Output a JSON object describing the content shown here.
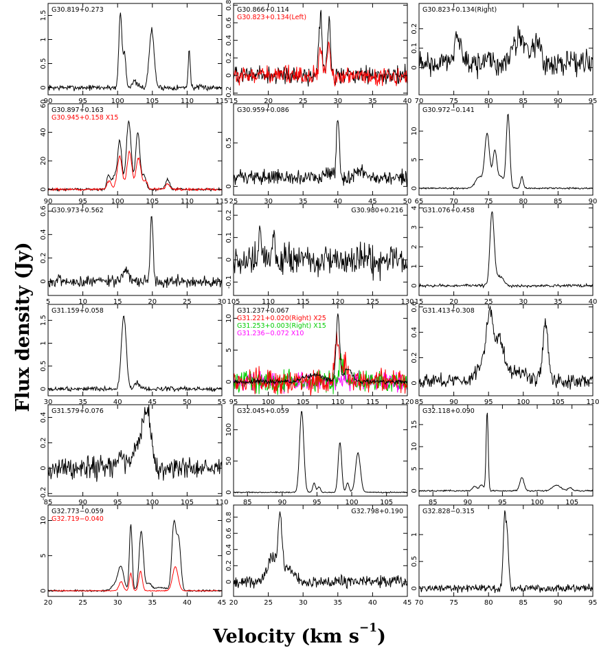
{
  "figure": {
    "ylabel": "Flux density (Jy)",
    "xlabel_main": "Velocity (km s",
    "xlabel_exp": "−1",
    "xlabel_close": ")"
  },
  "chart_data": [
    {
      "type": "line",
      "labels": [
        {
          "text": "G30.819+0.273",
          "color": "#000000",
          "corner": "left"
        }
      ],
      "xlim": [
        90,
        115
      ],
      "ylim": [
        -0.15,
        1.75
      ],
      "xticks": [
        90,
        95,
        100,
        105,
        110,
        115
      ],
      "yticks": [
        0,
        0.5,
        1,
        1.5
      ],
      "series": [
        {
          "color": "#000000",
          "noise": 0.04,
          "base": 0,
          "peaks": [
            [
              100.4,
              1.55,
              0.22
            ],
            [
              101.0,
              0.7,
              0.2
            ],
            [
              102.4,
              0.12,
              0.4
            ],
            [
              104.9,
              1.2,
              0.35
            ],
            [
              110.3,
              0.78,
              0.15
            ]
          ]
        }
      ]
    },
    {
      "type": "line",
      "labels": [
        {
          "text": "G30.866+0.114",
          "color": "#000000",
          "corner": "left"
        },
        {
          "text": "G30.823+0.134(Left)",
          "color": "#ff0000",
          "corner": "left"
        }
      ],
      "xlim": [
        15,
        40
      ],
      "ylim": [
        -0.22,
        0.82
      ],
      "xticks": [
        15,
        20,
        25,
        30,
        35,
        40
      ],
      "yticks": [
        -0.2,
        0,
        0.2,
        0.4,
        0.6,
        0.8
      ],
      "series": [
        {
          "color": "#000000",
          "noise": 0.07,
          "base": 0,
          "peaks": [
            [
              27.5,
              0.72,
              0.22
            ],
            [
              28.7,
              0.66,
              0.22
            ]
          ]
        },
        {
          "color": "#ff0000",
          "noise": 0.07,
          "base": 0,
          "peaks": [
            [
              27.5,
              0.3,
              0.22
            ],
            [
              28.7,
              0.32,
              0.22
            ]
          ]
        }
      ]
    },
    {
      "type": "line",
      "labels": [
        {
          "text": "G30.823+0.134(Right)",
          "color": "#000000",
          "corner": "left"
        }
      ],
      "xlim": [
        70,
        95
      ],
      "ylim": [
        -0.14,
        0.33
      ],
      "xticks": [
        70,
        75,
        80,
        85,
        90,
        95
      ],
      "yticks": [
        0,
        0.1,
        0.2
      ],
      "series": [
        {
          "color": "#000000",
          "noise": 0.045,
          "base": 0.02,
          "peaks": [
            [
              75.6,
              0.15,
              0.5
            ],
            [
              84.5,
              0.14,
              0.9
            ],
            [
              87,
              0.1,
              0.6
            ]
          ]
        }
      ]
    },
    {
      "type": "line",
      "labels": [
        {
          "text": "G30.897+0.163",
          "color": "#000000",
          "corner": "left"
        },
        {
          "text": "G30.945+0.158  X15",
          "color": "#ff0000",
          "corner": "left"
        }
      ],
      "xlim": [
        90,
        115
      ],
      "ylim": [
        -4,
        60
      ],
      "xticks": [
        90,
        95,
        100,
        105,
        110,
        115
      ],
      "yticks": [
        0,
        20,
        40,
        60
      ],
      "series": [
        {
          "color": "#000000",
          "noise": 0.6,
          "base": 0,
          "peaks": [
            [
              98.7,
              10,
              0.25
            ],
            [
              99.5,
              9,
              0.3
            ],
            [
              100.3,
              34,
              0.3
            ],
            [
              101.6,
              48,
              0.35
            ],
            [
              102.9,
              40,
              0.3
            ],
            [
              103.8,
              10,
              0.3
            ],
            [
              107.2,
              7,
              0.3
            ]
          ]
        },
        {
          "color": "#ff0000",
          "noise": 0.6,
          "base": 0,
          "peaks": [
            [
              98.8,
              6,
              0.3
            ],
            [
              100.3,
              23,
              0.35
            ],
            [
              101.7,
              26,
              0.35
            ],
            [
              103.0,
              22,
              0.35
            ],
            [
              104,
              6,
              0.3
            ],
            [
              107.2,
              4,
              0.3
            ]
          ]
        }
      ]
    },
    {
      "type": "line",
      "labels": [
        {
          "text": "G30.959+0.086",
          "color": "#000000",
          "corner": "left"
        }
      ],
      "xlim": [
        25,
        50
      ],
      "ylim": [
        -0.1,
        0.95
      ],
      "xticks": [
        25,
        30,
        35,
        40,
        45,
        50
      ],
      "yticks": [
        0,
        0.5
      ],
      "series": [
        {
          "color": "#000000",
          "noise": 0.06,
          "base": 0.1,
          "peaks": [
            [
              40.0,
              0.67,
              0.2
            ],
            [
              38.5,
              0.08,
              0.6
            ],
            [
              43.5,
              0.05,
              0.8
            ]
          ]
        }
      ]
    },
    {
      "type": "line",
      "labels": [
        {
          "text": "G30.972−0.141",
          "color": "#000000",
          "corner": "left"
        }
      ],
      "xlim": [
        65,
        90
      ],
      "ylim": [
        -1.2,
        14.8
      ],
      "xticks": [
        65,
        70,
        75,
        80,
        85,
        90
      ],
      "yticks": [
        0,
        5,
        10
      ],
      "series": [
        {
          "color": "#000000",
          "noise": 0.1,
          "base": 0,
          "peaks": [
            [
              73.6,
              2,
              0.5
            ],
            [
              74.8,
              9.5,
              0.35
            ],
            [
              75.9,
              6.5,
              0.3
            ],
            [
              77.8,
              13,
              0.25
            ],
            [
              79.8,
              2,
              0.2
            ],
            [
              76.8,
              2,
              0.4
            ]
          ]
        }
      ]
    },
    {
      "type": "line",
      "labels": [
        {
          "text": "G30.973+0.562",
          "color": "#000000",
          "corner": "left"
        }
      ],
      "xlim": [
        5,
        30
      ],
      "ylim": [
        -0.12,
        0.66
      ],
      "xticks": [
        5,
        10,
        15,
        20,
        25,
        30
      ],
      "yticks": [
        0,
        0.2,
        0.4,
        0.6
      ],
      "series": [
        {
          "color": "#000000",
          "noise": 0.035,
          "base": 0,
          "peaks": [
            [
              19.9,
              0.58,
              0.2
            ],
            [
              16.2,
              0.1,
              0.4
            ]
          ]
        }
      ]
    },
    {
      "type": "line",
      "labels": [
        {
          "text": "G30.980+0.216",
          "color": "#000000",
          "corner": "right"
        }
      ],
      "xlim": [
        105,
        130
      ],
      "ylim": [
        -0.16,
        0.25
      ],
      "xticks": [
        105,
        110,
        115,
        120,
        125,
        130
      ],
      "yticks": [
        -0.1,
        0,
        0.1,
        0.2
      ],
      "series": [
        {
          "color": "#000000",
          "noise": 0.05,
          "base": 0.0,
          "peaks": [
            [
              108.8,
              0.17,
              0.2
            ],
            [
              110.7,
              0.1,
              0.3
            ]
          ]
        }
      ]
    },
    {
      "type": "line",
      "labels": [
        {
          "text": "G31.076+0.458",
          "color": "#000000",
          "corner": "left"
        }
      ],
      "xlim": [
        15,
        40
      ],
      "ylim": [
        -0.5,
        4.2
      ],
      "xticks": [
        15,
        20,
        25,
        30,
        35,
        40
      ],
      "yticks": [
        0,
        1,
        2,
        3,
        4
      ],
      "series": [
        {
          "color": "#000000",
          "noise": 0.05,
          "base": 0,
          "peaks": [
            [
              25.5,
              3.7,
              0.3
            ],
            [
              26.5,
              0.5,
              0.6
            ]
          ]
        }
      ]
    },
    {
      "type": "line",
      "labels": [
        {
          "text": "G31.159+0.058",
          "color": "#000000",
          "corner": "left"
        }
      ],
      "xlim": [
        30,
        55
      ],
      "ylim": [
        -0.15,
        1.85
      ],
      "xticks": [
        30,
        35,
        40,
        45,
        50,
        55
      ],
      "yticks": [
        0,
        0.5,
        1,
        1.5
      ],
      "series": [
        {
          "color": "#000000",
          "noise": 0.035,
          "base": 0,
          "peaks": [
            [
              40.9,
              1.6,
              0.35
            ],
            [
              42.8,
              0.15,
              0.3
            ]
          ]
        }
      ]
    },
    {
      "type": "line",
      "labels": [
        {
          "text": "G31.237+0.067",
          "color": "#000000",
          "corner": "left"
        },
        {
          "text": "G31.221+0.020(Right)  X25",
          "color": "#ff0000",
          "corner": "left"
        },
        {
          "text": "G31.253+0.003(Right)  X15",
          "color": "#00cc00",
          "corner": "left"
        },
        {
          "text": "G31.236−0.072  X10",
          "color": "#ff00ff",
          "corner": "left"
        }
      ],
      "xlim": [
        95,
        120
      ],
      "ylim": [
        -2.2,
        12.2
      ],
      "xticks": [
        95,
        100,
        105,
        110,
        115,
        120
      ],
      "yticks": [
        0,
        5,
        10
      ],
      "series": [
        {
          "color": "#ff00ff",
          "noise": 1.0,
          "base": 0,
          "peaks": []
        },
        {
          "color": "#00cc00",
          "noise": 1.2,
          "base": 0,
          "peaks": [
            [
              110.5,
              4,
              0.3
            ]
          ]
        },
        {
          "color": "#ff0000",
          "noise": 1.3,
          "base": 0,
          "peaks": [
            [
              109.9,
              7,
              0.3
            ],
            [
              111,
              3,
              0.4
            ]
          ]
        },
        {
          "color": "#000000",
          "noise": 0.25,
          "base": 0,
          "peaks": [
            [
              106.5,
              1,
              1.5
            ],
            [
              110.0,
              10.5,
              0.25
            ],
            [
              111.5,
              2,
              0.6
            ]
          ]
        }
      ]
    },
    {
      "type": "line",
      "labels": [
        {
          "text": "G31.413+0.308",
          "color": "#000000",
          "corner": "left"
        }
      ],
      "xlim": [
        85,
        110
      ],
      "ylim": [
        -0.1,
        0.62
      ],
      "xticks": [
        85,
        90,
        95,
        100,
        105,
        110
      ],
      "yticks": [
        0,
        0.2,
        0.4,
        0.6
      ],
      "series": [
        {
          "color": "#000000",
          "noise": 0.04,
          "base": 0.02,
          "peaks": [
            [
              95.2,
              0.5,
              0.5
            ],
            [
              96.6,
              0.3,
              0.6
            ],
            [
              94.0,
              0.12,
              0.8
            ],
            [
              103.2,
              0.46,
              0.35
            ],
            [
              99,
              0.08,
              1.5
            ]
          ]
        }
      ]
    },
    {
      "type": "line",
      "labels": [
        {
          "text": "G31.579+0.076",
          "color": "#000000",
          "corner": "left"
        }
      ],
      "xlim": [
        85,
        110
      ],
      "ylim": [
        -0.22,
        0.5
      ],
      "xticks": [
        85,
        90,
        95,
        100,
        105,
        110
      ],
      "yticks": [
        -0.2,
        0,
        0.2,
        0.4
      ],
      "series": [
        {
          "color": "#000000",
          "noise": 0.06,
          "base": 0,
          "peaks": [
            [
              99.3,
              0.38,
              0.5
            ],
            [
              98.2,
              0.22,
              0.8
            ],
            [
              95.5,
              0.1,
              0.4
            ]
          ]
        }
      ]
    },
    {
      "type": "line",
      "labels": [
        {
          "text": "G32.045+0.059",
          "color": "#000000",
          "corner": "left"
        }
      ],
      "xlim": [
        83,
        108
      ],
      "ylim": [
        -6,
        140
      ],
      "xticks": [
        85,
        90,
        95,
        100,
        105
      ],
      "yticks": [
        0,
        50,
        100
      ],
      "series": [
        {
          "color": "#000000",
          "noise": 0.6,
          "base": 0,
          "peaks": [
            [
              92.8,
              130,
              0.3
            ],
            [
              94.6,
              15,
              0.2
            ],
            [
              95.3,
              9,
              0.2
            ],
            [
              98.3,
              80,
              0.25
            ],
            [
              99.4,
              15,
              0.2
            ],
            [
              100.9,
              63,
              0.35
            ]
          ]
        }
      ]
    },
    {
      "type": "line",
      "labels": [
        {
          "text": "G32.118+0.090",
          "color": "#000000",
          "corner": "left"
        }
      ],
      "xlim": [
        83,
        108
      ],
      "ylim": [
        -1.2,
        19.5
      ],
      "xticks": [
        85,
        90,
        95,
        100,
        105
      ],
      "yticks": [
        0,
        5,
        10,
        15
      ],
      "series": [
        {
          "color": "#000000",
          "noise": 0.1,
          "base": 0,
          "peaks": [
            [
              91,
              1,
              0.3
            ],
            [
              92,
              1.4,
              0.3
            ],
            [
              92.8,
              18,
              0.15
            ],
            [
              97.8,
              3,
              0.3
            ],
            [
              102.8,
              1.3,
              0.6
            ],
            [
              104.7,
              0.7,
              0.3
            ]
          ]
        }
      ]
    },
    {
      "type": "line",
      "labels": [
        {
          "text": "G32.773−0.059",
          "color": "#000000",
          "corner": "left"
        },
        {
          "text": "G32.719−0.040",
          "color": "#ff0000",
          "corner": "left"
        }
      ],
      "xlim": [
        20,
        45
      ],
      "ylim": [
        -0.8,
        12.2
      ],
      "xticks": [
        20,
        25,
        30,
        35,
        40,
        45
      ],
      "yticks": [
        0,
        5,
        10
      ],
      "series": [
        {
          "color": "#000000",
          "noise": 0.08,
          "base": 0,
          "peaks": [
            [
              29.8,
              1,
              0.6
            ],
            [
              30.5,
              3,
              0.4
            ],
            [
              31.9,
              9.5,
              0.2
            ],
            [
              33.4,
              8.5,
              0.3
            ],
            [
              34.5,
              1,
              0.4
            ],
            [
              38.1,
              9.5,
              0.3
            ],
            [
              38.8,
              7,
              0.3
            ],
            [
              36.2,
              0.5,
              0.8
            ]
          ]
        },
        {
          "color": "#ff0000",
          "noise": 0.05,
          "base": 0,
          "peaks": [
            [
              30.5,
              1.3,
              0.3
            ],
            [
              31.9,
              2.5,
              0.2
            ],
            [
              33.3,
              2.8,
              0.25
            ],
            [
              38.3,
              3.4,
              0.4
            ]
          ]
        }
      ]
    },
    {
      "type": "line",
      "labels": [
        {
          "text": "G32.798+0.190",
          "color": "#000000",
          "corner": "right"
        }
      ],
      "xlim": [
        20,
        45
      ],
      "ylim": [
        -0.18,
        0.95
      ],
      "xticks": [
        20,
        25,
        30,
        35,
        40,
        45
      ],
      "yticks": [
        0,
        0.2,
        0.4,
        0.6,
        0.8
      ],
      "series": [
        {
          "color": "#000000",
          "noise": 0.05,
          "base": 0,
          "peaks": [
            [
              26.7,
              0.75,
              0.3
            ],
            [
              25.5,
              0.3,
              0.6
            ],
            [
              28,
              0.15,
              0.8
            ]
          ]
        }
      ]
    },
    {
      "type": "line",
      "labels": [
        {
          "text": "G32.828−0.315",
          "color": "#000000",
          "corner": "left"
        }
      ],
      "xlim": [
        70,
        95
      ],
      "ylim": [
        -0.15,
        1.55
      ],
      "xticks": [
        70,
        75,
        80,
        85,
        90,
        95
      ],
      "yticks": [
        0,
        0.5,
        1
      ],
      "series": [
        {
          "color": "#000000",
          "noise": 0.05,
          "base": 0,
          "peaks": [
            [
              82.3,
              1.25,
              0.2
            ],
            [
              82.7,
              0.9,
              0.2
            ]
          ]
        }
      ]
    }
  ]
}
